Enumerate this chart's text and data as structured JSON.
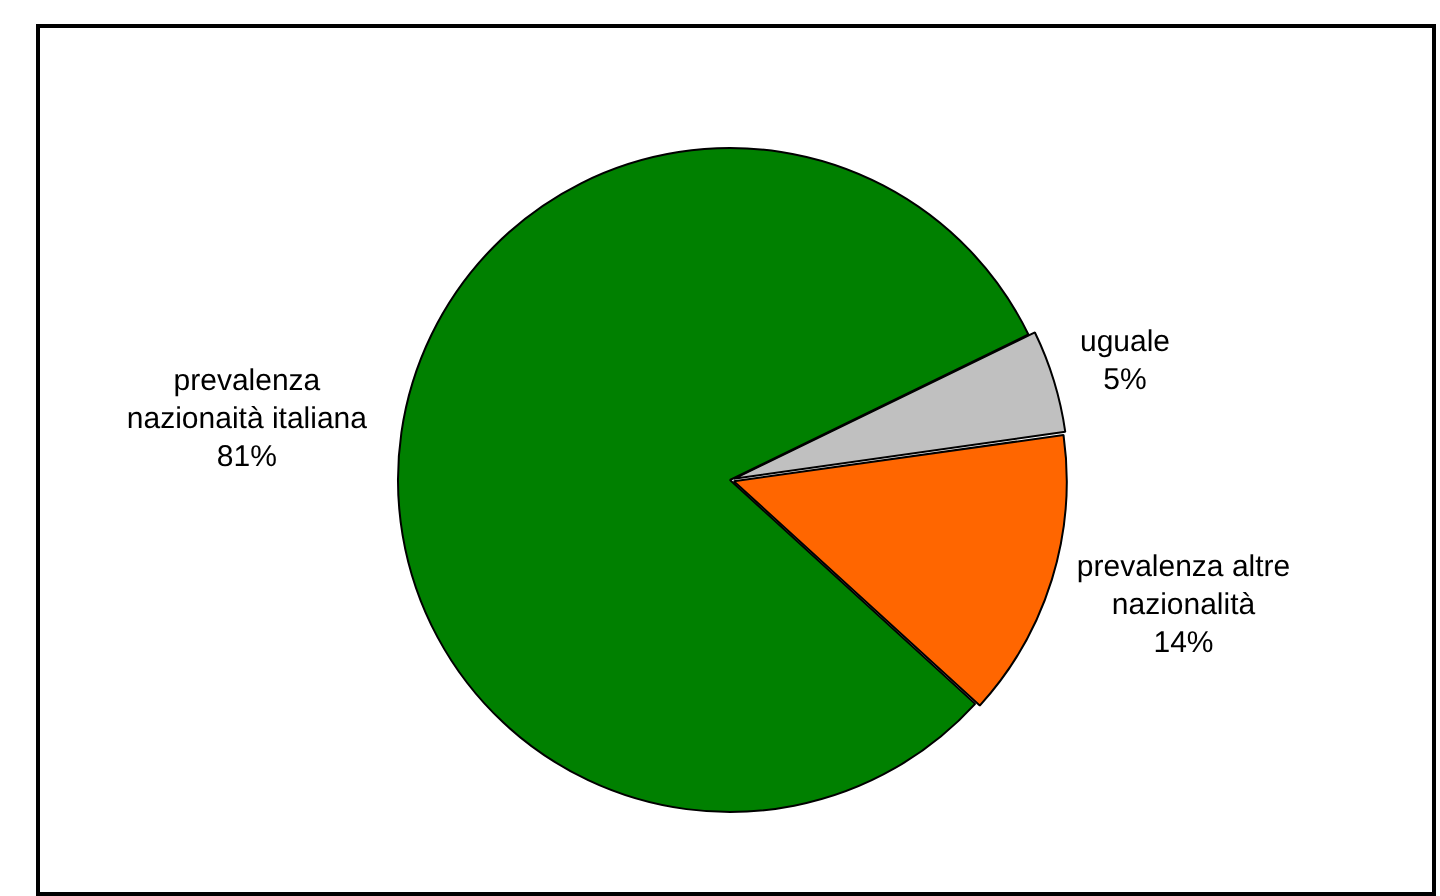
{
  "chart_data": {
    "type": "pie",
    "categories": [
      "uguale",
      "prevalenza altre nazionalità",
      "prevalenza nazionaità italiana"
    ],
    "values": [
      5,
      14,
      81
    ],
    "value_labels": [
      "5%",
      "14%",
      "81%"
    ],
    "colors": [
      "#c0c0c0",
      "#ff6600",
      "#008000"
    ],
    "legend": false
  }
}
